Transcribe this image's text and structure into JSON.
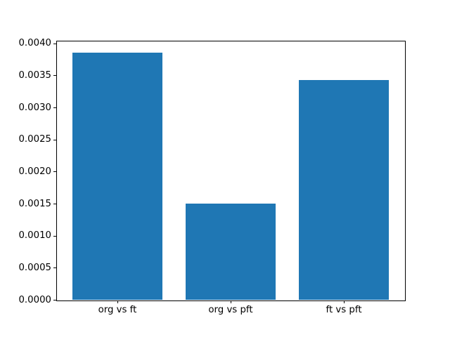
{
  "chart_data": {
    "type": "bar",
    "categories": [
      "org vs ft",
      "org vs pft",
      "ft vs pft"
    ],
    "values": [
      0.00385,
      0.0015,
      0.00343
    ],
    "title": "",
    "xlabel": "",
    "ylabel": "",
    "ylim": [
      0,
      0.004041
    ],
    "yticks": [
      0.0,
      0.0005,
      0.001,
      0.0015,
      0.002,
      0.0025,
      0.003,
      0.0035,
      0.004
    ],
    "ytick_labels": [
      "0.0000",
      "0.0005",
      "0.0010",
      "0.0015",
      "0.0020",
      "0.0025",
      "0.0030",
      "0.0035",
      "0.0040"
    ],
    "bar_color": "#1f77b4",
    "bar_relative_width": 0.8,
    "grid": false,
    "legend_position": "none"
  },
  "figure": {
    "background_color": "#ffffff",
    "axes_edge_color": "#000000",
    "tick_color": "#000000",
    "text_color": "#000000"
  }
}
